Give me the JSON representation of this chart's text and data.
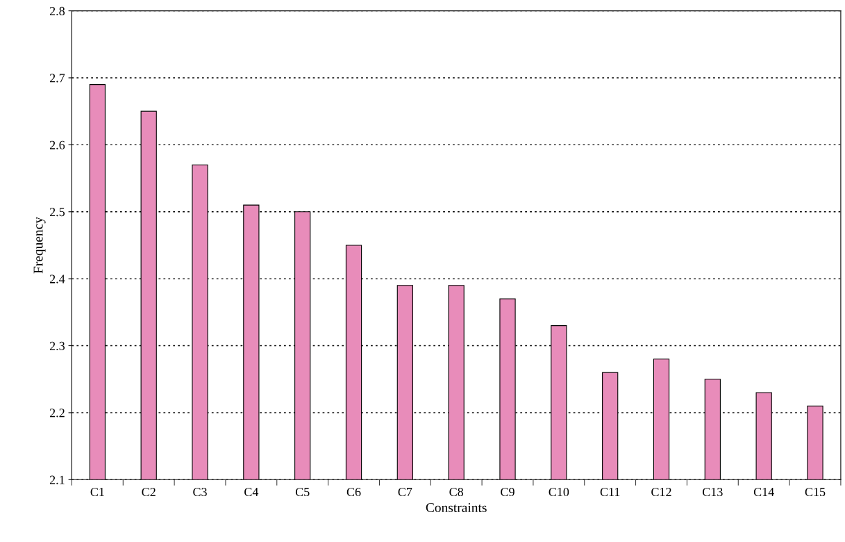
{
  "chart_data": {
    "type": "bar",
    "xlabel": "Constraints",
    "ylabel": "Frequency",
    "categories": [
      "C1",
      "C2",
      "C3",
      "C4",
      "C5",
      "C6",
      "C7",
      "C8",
      "C9",
      "C10",
      "C11",
      "C12",
      "C13",
      "C14",
      "C15"
    ],
    "values": [
      2.69,
      2.65,
      2.57,
      2.51,
      2.5,
      2.45,
      2.39,
      2.39,
      2.37,
      2.33,
      2.26,
      2.28,
      2.25,
      2.23,
      2.21
    ],
    "color": "#e88cba",
    "ylim": [
      2.1,
      2.8
    ],
    "yticks": [
      2.1,
      2.2,
      2.3,
      2.4,
      2.5,
      2.6,
      2.7,
      2.8
    ],
    "grid": "y"
  }
}
